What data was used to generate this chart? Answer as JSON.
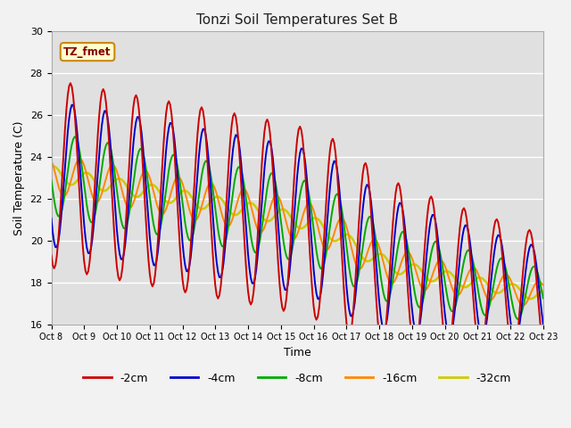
{
  "title": "Tonzi Soil Temperatures Set B",
  "xlabel": "Time",
  "ylabel": "Soil Temperature (C)",
  "ylim": [
    16,
    30
  ],
  "xlim": [
    0,
    360
  ],
  "plot_bg_color": "#e0e0e0",
  "fig_bg_color": "#f2f2f2",
  "annotation_text": "TZ_fmet",
  "annotation_bg": "#ffffcc",
  "annotation_border": "#cc8800",
  "series": {
    "-2cm": {
      "color": "#cc0000",
      "lw": 1.4
    },
    "-4cm": {
      "color": "#0000cc",
      "lw": 1.4
    },
    "-8cm": {
      "color": "#00aa00",
      "lw": 1.4
    },
    "-16cm": {
      "color": "#ff8800",
      "lw": 1.4
    },
    "-32cm": {
      "color": "#cccc00",
      "lw": 1.8
    }
  },
  "xtick_labels": [
    "Oct 8",
    "Oct 9",
    "Oct 10",
    "Oct 11",
    "Oct 12",
    "Oct 13",
    "Oct 14",
    "Oct 15",
    "Oct 16",
    "Oct 17",
    "Oct 18",
    "Oct 19",
    "Oct 20",
    "Oct 21",
    "Oct 22",
    "Oct 23"
  ],
  "xtick_positions": [
    0,
    24,
    48,
    72,
    96,
    120,
    144,
    168,
    192,
    216,
    240,
    264,
    288,
    312,
    336,
    360
  ],
  "ytick_positions": [
    16,
    18,
    20,
    22,
    24,
    26,
    28,
    30
  ],
  "grid_color": "#ffffff",
  "legend_colors": [
    "#cc0000",
    "#0000cc",
    "#00aa00",
    "#ff8800",
    "#cccc00"
  ],
  "legend_labels": [
    "-2cm",
    "-4cm",
    "-8cm",
    "-16cm",
    "-32cm"
  ]
}
